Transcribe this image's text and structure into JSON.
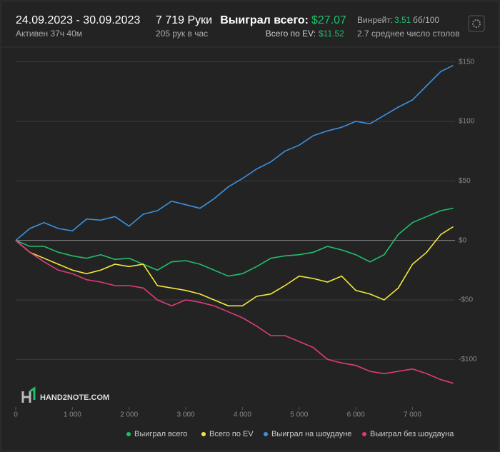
{
  "header": {
    "period": "24.09.2023 - 30.09.2023",
    "active": "Активен 37ч 40м",
    "hands": "7 719 Руки",
    "rate": "205 рук в час",
    "won_label": "Выиграл всего:",
    "won_value": "$27.07",
    "ev_label": "Всего по EV:",
    "ev_value": "$11.52",
    "winrate_label": "Винрейт:",
    "winrate_value": "3.51",
    "winrate_unit": "бб/100",
    "tables": "2.7 среднее число столов",
    "logo": "HAND2NOTE.COM"
  },
  "chart_data": {
    "type": "line",
    "x": [
      0,
      250,
      500,
      750,
      1000,
      1250,
      1500,
      1750,
      2000,
      2250,
      2500,
      2750,
      3000,
      3250,
      3500,
      3750,
      4000,
      4250,
      4500,
      4750,
      5000,
      5250,
      5500,
      5750,
      6000,
      6250,
      6500,
      6750,
      7000,
      7250,
      7500,
      7719
    ],
    "series": [
      {
        "name": "Выиграл всего",
        "color": "#1fbf6a",
        "values": [
          0,
          -5,
          -5,
          -10,
          -13,
          -15,
          -12,
          -16,
          -15,
          -20,
          -25,
          -18,
          -17,
          -20,
          -25,
          -30,
          -28,
          -22,
          -15,
          -13,
          -12,
          -10,
          -5,
          -8,
          -12,
          -18,
          -12,
          5,
          15,
          20,
          25,
          27.07
        ]
      },
      {
        "name": "Всего по EV",
        "color": "#f2e83a",
        "values": [
          0,
          -10,
          -15,
          -20,
          -25,
          -28,
          -25,
          -20,
          -22,
          -20,
          -38,
          -40,
          -42,
          -45,
          -50,
          -55,
          -55,
          -47,
          -45,
          -38,
          -30,
          -32,
          -35,
          -30,
          -42,
          -45,
          -50,
          -40,
          -20,
          -10,
          5,
          11.52
        ]
      },
      {
        "name": "Выиграл на шоудауне",
        "color": "#3d8fe0",
        "values": [
          0,
          10,
          15,
          10,
          8,
          18,
          17,
          20,
          12,
          22,
          25,
          33,
          30,
          27,
          35,
          45,
          52,
          60,
          66,
          75,
          80,
          88,
          92,
          95,
          100,
          98,
          105,
          112,
          118,
          130,
          142,
          147
        ]
      },
      {
        "name": "Выиграл без шоудауна",
        "color": "#e03a7a",
        "values": [
          0,
          -10,
          -18,
          -25,
          -28,
          -33,
          -35,
          -38,
          -38,
          -40,
          -50,
          -55,
          -50,
          -52,
          -55,
          -60,
          -65,
          -72,
          -80,
          -80,
          -85,
          -90,
          -100,
          -103,
          -105,
          -110,
          -112,
          -110,
          -108,
          -112,
          -117,
          -120
        ]
      }
    ],
    "xlim": [
      0,
      7750
    ],
    "xticks": [
      0,
      {
        "value": 1000,
        "label": "1 000"
      },
      {
        "value": 2000,
        "label": "2 000"
      },
      {
        "value": 3000,
        "label": "3 000"
      },
      {
        "value": 4000,
        "label": "4 000"
      },
      {
        "value": 5000,
        "label": "5 000"
      },
      {
        "value": 6000,
        "label": "6 000"
      },
      {
        "value": 7000,
        "label": "7 000"
      }
    ],
    "ylim": [
      -140,
      157
    ],
    "yticks": [
      {
        "value": -100,
        "label": "-$100"
      },
      {
        "value": -50,
        "label": "-$50"
      },
      {
        "value": 0,
        "label": "$0"
      },
      {
        "value": 50,
        "label": "$50"
      },
      {
        "value": 100,
        "label": "$100"
      },
      {
        "value": 150,
        "label": "$150"
      }
    ],
    "grid": true
  }
}
